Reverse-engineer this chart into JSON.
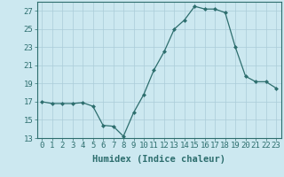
{
  "x": [
    0,
    1,
    2,
    3,
    4,
    5,
    6,
    7,
    8,
    9,
    10,
    11,
    12,
    13,
    14,
    15,
    16,
    17,
    18,
    19,
    20,
    21,
    22,
    23
  ],
  "y": [
    17.0,
    16.8,
    16.8,
    16.8,
    16.9,
    16.5,
    14.4,
    14.3,
    13.2,
    15.8,
    17.8,
    20.5,
    22.5,
    25.0,
    26.0,
    27.5,
    27.2,
    27.2,
    26.8,
    23.0,
    19.8,
    19.2,
    19.2,
    18.5
  ],
  "xlabel": "Humidex (Indice chaleur)",
  "ylim": [
    13,
    28
  ],
  "yticks": [
    13,
    15,
    17,
    19,
    21,
    23,
    25,
    27
  ],
  "xlim": [
    -0.5,
    23.5
  ],
  "line_color": "#2d6e6e",
  "marker": "D",
  "marker_size": 2.5,
  "bg_color": "#cce8f0",
  "grid_color": "#aaccd8",
  "tick_fontsize": 6.5,
  "xlabel_fontsize": 7.5
}
